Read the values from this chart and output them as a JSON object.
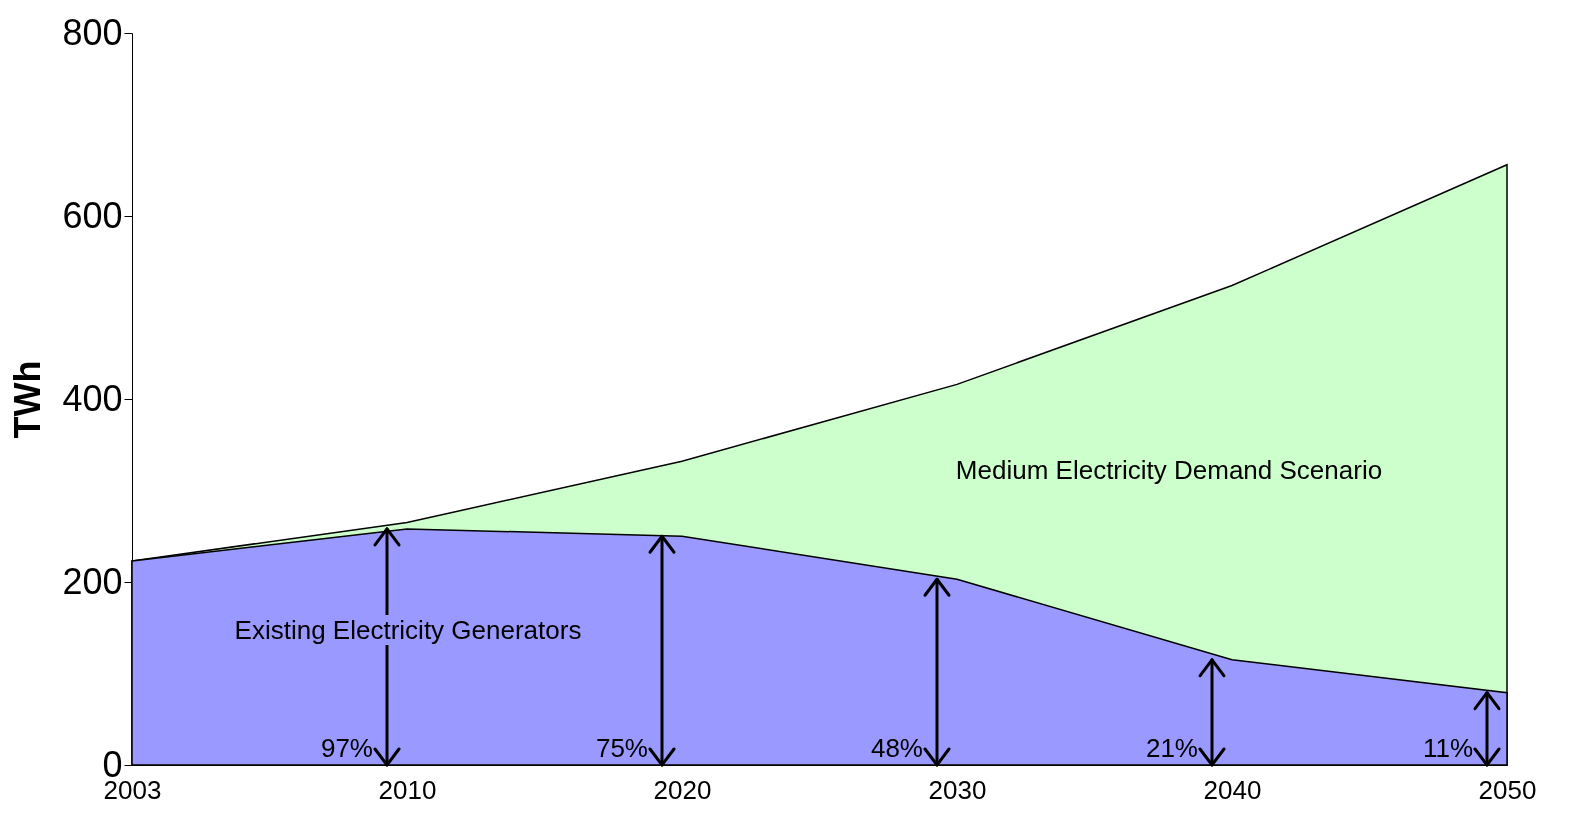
{
  "chart_data": {
    "type": "area",
    "categories": [
      "2003",
      "2010",
      "2020",
      "2030",
      "2040",
      "2050"
    ],
    "series": [
      {
        "color": "#ccffcc",
        "values": [
          223,
          265,
          332,
          416,
          524,
          656
        ]
      },
      {
        "color": "#9999ff",
        "values": [
          223,
          258,
          250,
          203,
          115,
          79
        ]
      }
    ],
    "ylabel": "TWh",
    "ylim": [
      0,
      800
    ],
    "yticks": [
      0,
      200,
      400,
      600,
      800
    ],
    "grid": false,
    "annotations": [
      "Medium Electricity Demand Scenario",
      "Existing Electricity Generators",
      {
        "text": "97%",
        "x": "2010",
        "y": 0
      },
      {
        "text": "75%",
        "x": "2020",
        "y": 0
      },
      {
        "text": "48%",
        "x": "2030",
        "y": 0
      },
      {
        "text": "21%",
        "x": "2040",
        "y": 0
      },
      {
        "text": "11%",
        "x": "2050",
        "y": 0
      }
    ]
  }
}
